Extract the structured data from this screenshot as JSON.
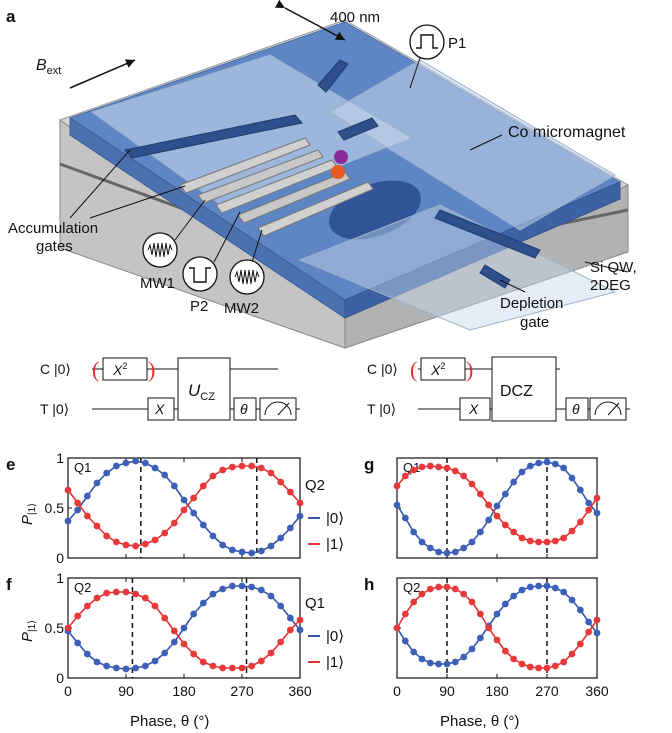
{
  "panel_a": {
    "letter": "a",
    "scale_bar": "400 nm",
    "bext_main": "B",
    "bext_sub": "ext",
    "labels": {
      "p1": "P1",
      "co_micromagnet": "Co micromagnet",
      "accumulation_line1": "Accumulation",
      "accumulation_line2": "gates",
      "mw1": "MW1",
      "p2": "P2",
      "mw2": "MW2",
      "si_qw_line1": "Si QW,",
      "si_qw_line2": "2DEG",
      "depletion_line1": "Depletion",
      "depletion_line2": "gate"
    }
  },
  "circuits": {
    "left": {
      "control": "C |0⟩",
      "target": "T |0⟩",
      "gate_x2": "X",
      "gate_x2_sup": "2",
      "gate_x": "X",
      "gate_two": "U",
      "gate_two_sub": "CZ",
      "gate_theta": "θ"
    },
    "right": {
      "control": "C |0⟩",
      "target": "T |0⟩",
      "gate_x2": "X",
      "gate_x2_sup": "2",
      "gate_x": "X",
      "gate_two": "DCZ",
      "gate_theta": "θ"
    }
  },
  "legend_top": {
    "title": "Q2",
    "entries": [
      "|0⟩",
      "|1⟩"
    ]
  },
  "legend_bottom": {
    "title": "Q1",
    "entries": [
      "|0⟩",
      "|1⟩"
    ]
  },
  "axis_common": {
    "xlabel": "Phase, θ (°)",
    "ylabel_main": "P",
    "ylabel_sub": "|1⟩",
    "xticks": [
      "0",
      "90",
      "180",
      "270",
      "360"
    ],
    "yticks": [
      "0",
      "0.5",
      "1"
    ]
  },
  "colors": {
    "blue": "#3355aa",
    "red": "#e33030",
    "blue_fill": "#3d5fb8",
    "red_fill": "#e8383a"
  },
  "chart_data": [
    {
      "panel": "e",
      "type": "scatter",
      "inset_label": "Q1",
      "xlim": [
        0,
        360
      ],
      "ylim": [
        0,
        1
      ],
      "vlines": [
        113,
        293
      ],
      "series": [
        {
          "name": "|0⟩",
          "color": "blue",
          "x": [
            0,
            15,
            30,
            45,
            60,
            75,
            90,
            105,
            120,
            135,
            150,
            165,
            180,
            195,
            210,
            225,
            240,
            255,
            270,
            285,
            300,
            315,
            330,
            345,
            360
          ],
          "y": [
            0.37,
            0.48,
            0.62,
            0.75,
            0.85,
            0.92,
            0.95,
            0.97,
            0.95,
            0.9,
            0.83,
            0.72,
            0.58,
            0.45,
            0.33,
            0.22,
            0.13,
            0.08,
            0.06,
            0.05,
            0.07,
            0.12,
            0.2,
            0.3,
            0.42
          ]
        },
        {
          "name": "|1⟩",
          "color": "red",
          "x": [
            0,
            15,
            30,
            45,
            60,
            75,
            90,
            105,
            120,
            135,
            150,
            165,
            180,
            195,
            210,
            225,
            240,
            255,
            270,
            285,
            300,
            315,
            330,
            345,
            360
          ],
          "y": [
            0.68,
            0.55,
            0.42,
            0.32,
            0.22,
            0.16,
            0.13,
            0.12,
            0.14,
            0.18,
            0.25,
            0.35,
            0.48,
            0.6,
            0.72,
            0.82,
            0.88,
            0.91,
            0.92,
            0.92,
            0.9,
            0.85,
            0.76,
            0.66,
            0.55
          ]
        }
      ]
    },
    {
      "panel": "g",
      "type": "scatter",
      "inset_label": "Q1",
      "xlim": [
        0,
        360
      ],
      "ylim": [
        0,
        1
      ],
      "vlines": [
        90,
        270
      ],
      "series": [
        {
          "name": "|0⟩",
          "color": "blue",
          "x": [
            0,
            15,
            30,
            45,
            60,
            75,
            90,
            105,
            120,
            135,
            150,
            165,
            180,
            195,
            210,
            225,
            240,
            255,
            270,
            285,
            300,
            315,
            330,
            345,
            360
          ],
          "y": [
            0.53,
            0.4,
            0.26,
            0.16,
            0.1,
            0.06,
            0.05,
            0.06,
            0.1,
            0.16,
            0.26,
            0.38,
            0.52,
            0.64,
            0.76,
            0.86,
            0.92,
            0.95,
            0.96,
            0.94,
            0.9,
            0.8,
            0.68,
            0.55,
            0.45
          ]
        },
        {
          "name": "|1⟩",
          "color": "red",
          "x": [
            0,
            15,
            30,
            45,
            60,
            75,
            90,
            105,
            120,
            135,
            150,
            165,
            180,
            195,
            210,
            225,
            240,
            255,
            270,
            285,
            300,
            315,
            330,
            345,
            360
          ],
          "y": [
            0.72,
            0.82,
            0.88,
            0.91,
            0.92,
            0.91,
            0.9,
            0.87,
            0.82,
            0.74,
            0.64,
            0.53,
            0.42,
            0.33,
            0.26,
            0.2,
            0.17,
            0.16,
            0.16,
            0.17,
            0.2,
            0.27,
            0.36,
            0.48,
            0.6
          ]
        }
      ]
    },
    {
      "panel": "f",
      "type": "scatter",
      "inset_label": "Q2",
      "xlim": [
        0,
        360
      ],
      "ylim": [
        0,
        1
      ],
      "vlines": [
        100,
        277
      ],
      "series": [
        {
          "name": "|0⟩",
          "color": "blue",
          "x": [
            0,
            15,
            30,
            45,
            60,
            75,
            90,
            105,
            120,
            135,
            150,
            165,
            180,
            195,
            210,
            225,
            240,
            255,
            270,
            285,
            300,
            315,
            330,
            345,
            360
          ],
          "y": [
            0.47,
            0.35,
            0.24,
            0.16,
            0.12,
            0.1,
            0.09,
            0.1,
            0.12,
            0.17,
            0.25,
            0.36,
            0.5,
            0.64,
            0.75,
            0.84,
            0.89,
            0.92,
            0.92,
            0.91,
            0.88,
            0.82,
            0.72,
            0.6,
            0.48
          ]
        },
        {
          "name": "|1⟩",
          "color": "red",
          "x": [
            0,
            15,
            30,
            45,
            60,
            75,
            90,
            105,
            120,
            135,
            150,
            165,
            180,
            195,
            210,
            225,
            240,
            255,
            270,
            285,
            300,
            315,
            330,
            345,
            360
          ],
          "y": [
            0.5,
            0.62,
            0.72,
            0.8,
            0.85,
            0.86,
            0.86,
            0.84,
            0.8,
            0.72,
            0.6,
            0.47,
            0.34,
            0.24,
            0.16,
            0.12,
            0.1,
            0.1,
            0.1,
            0.12,
            0.17,
            0.25,
            0.36,
            0.48,
            0.58
          ]
        }
      ]
    },
    {
      "panel": "h",
      "type": "scatter",
      "inset_label": "Q2",
      "xlim": [
        0,
        360
      ],
      "ylim": [
        0,
        1
      ],
      "vlines": [
        90,
        270
      ],
      "series": [
        {
          "name": "|0⟩",
          "color": "blue",
          "x": [
            0,
            15,
            30,
            45,
            60,
            75,
            90,
            105,
            120,
            135,
            150,
            165,
            180,
            195,
            210,
            225,
            240,
            255,
            270,
            285,
            300,
            315,
            330,
            345,
            360
          ],
          "y": [
            0.5,
            0.37,
            0.26,
            0.19,
            0.15,
            0.14,
            0.14,
            0.16,
            0.21,
            0.29,
            0.4,
            0.52,
            0.64,
            0.74,
            0.82,
            0.88,
            0.91,
            0.92,
            0.92,
            0.9,
            0.86,
            0.78,
            0.68,
            0.56,
            0.45
          ]
        },
        {
          "name": "|1⟩",
          "color": "red",
          "x": [
            0,
            15,
            30,
            45,
            60,
            75,
            90,
            105,
            120,
            135,
            150,
            165,
            180,
            195,
            210,
            225,
            240,
            255,
            270,
            285,
            300,
            315,
            330,
            345,
            360
          ],
          "y": [
            0.5,
            0.64,
            0.76,
            0.84,
            0.89,
            0.91,
            0.91,
            0.89,
            0.84,
            0.76,
            0.64,
            0.5,
            0.38,
            0.27,
            0.19,
            0.14,
            0.11,
            0.1,
            0.1,
            0.12,
            0.16,
            0.24,
            0.34,
            0.46,
            0.58
          ]
        }
      ]
    }
  ]
}
